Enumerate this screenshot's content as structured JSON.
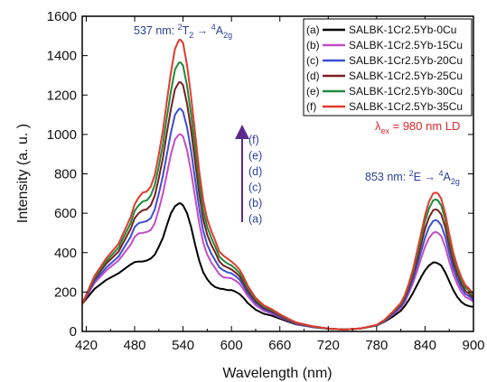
{
  "chart_data": {
    "type": "line",
    "xlabel": "Wavelength (nm)",
    "ylabel": "Intensity (a. u. )",
    "xlim": [
      415,
      900
    ],
    "ylim": [
      0,
      1600
    ],
    "xticks": [
      420,
      480,
      540,
      600,
      660,
      720,
      780,
      840,
      900
    ],
    "yticks": [
      0,
      200,
      400,
      600,
      800,
      1000,
      1200,
      1400,
      1600
    ],
    "grid": false,
    "legend_position": "top-right",
    "x": [
      415,
      430,
      445,
      460,
      475,
      480,
      485,
      490,
      495,
      500,
      505,
      510,
      515,
      520,
      525,
      530,
      535,
      537,
      540,
      545,
      550,
      555,
      560,
      565,
      570,
      575,
      580,
      585,
      590,
      595,
      600,
      605,
      610,
      615,
      620,
      630,
      640,
      650,
      660,
      670,
      680,
      700,
      720,
      740,
      760,
      780,
      790,
      800,
      810,
      815,
      820,
      825,
      830,
      835,
      840,
      845,
      850,
      853,
      856,
      860,
      865,
      870,
      875,
      880,
      885,
      890,
      895,
      900
    ],
    "series": [
      {
        "name": "SALBK-1Cr2.5Yb-0Cu",
        "marker": "(a)",
        "color": "#000000",
        "peak": 650,
        "shoulder": 210,
        "peak2": 350,
        "values": [
          140,
          215,
          262,
          295,
          340,
          352,
          355,
          355,
          360,
          370,
          390,
          430,
          475,
          540,
          600,
          635,
          650,
          650,
          640,
          600,
          530,
          440,
          360,
          300,
          265,
          240,
          225,
          218,
          215,
          210,
          210,
          202,
          190,
          170,
          145,
          110,
          90,
          80,
          65,
          50,
          36,
          22,
          14,
          10,
          15,
          30,
          50,
          75,
          105,
          130,
          160,
          195,
          235,
          275,
          310,
          335,
          350,
          350,
          345,
          335,
          300,
          255,
          210,
          175,
          150,
          135,
          128,
          125
        ]
      },
      {
        "name": "SALBK-1Cr2.5Yb-15Cu",
        "marker": "(b)",
        "color": "#c24dc6",
        "peak": 1000,
        "shoulder": 270,
        "peak2": 505,
        "values": [
          140,
          245,
          310,
          360,
          440,
          480,
          498,
          500,
          505,
          515,
          550,
          620,
          700,
          800,
          900,
          975,
          1000,
          1000,
          990,
          920,
          810,
          680,
          550,
          450,
          390,
          350,
          320,
          290,
          275,
          272,
          270,
          258,
          242,
          214,
          180,
          133,
          105,
          90,
          72,
          55,
          38,
          23,
          14,
          10,
          15,
          31,
          53,
          85,
          120,
          150,
          195,
          245,
          305,
          370,
          430,
          475,
          500,
          505,
          500,
          485,
          430,
          355,
          290,
          240,
          200,
          175,
          165,
          150
        ]
      },
      {
        "name": "SALBK-1Cr2.5Yb-20Cu",
        "marker": "(c)",
        "color": "#3a4fd0",
        "peak": 1130,
        "shoulder": 295,
        "peak2": 565,
        "values": [
          140,
          255,
          325,
          380,
          480,
          530,
          550,
          555,
          560,
          575,
          620,
          700,
          790,
          900,
          1010,
          1100,
          1130,
          1130,
          1115,
          1035,
          915,
          770,
          625,
          510,
          440,
          395,
          360,
          325,
          310,
          300,
          295,
          281,
          263,
          232,
          195,
          145,
          113,
          97,
          76,
          58,
          40,
          24,
          14,
          10,
          15,
          31,
          55,
          90,
          128,
          160,
          210,
          265,
          335,
          405,
          475,
          530,
          560,
          565,
          560,
          540,
          480,
          395,
          320,
          265,
          220,
          190,
          178,
          160
        ]
      },
      {
        "name": "SALBK-1Cr2.5Yb-25Cu",
        "marker": "(d)",
        "color": "#7a1f1f",
        "peak": 1265,
        "shoulder": 315,
        "peak2": 620,
        "values": [
          140,
          265,
          345,
          405,
          520,
          575,
          600,
          615,
          620,
          640,
          690,
          780,
          880,
          1010,
          1130,
          1230,
          1265,
          1265,
          1250,
          1155,
          1020,
          860,
          700,
          570,
          490,
          440,
          400,
          355,
          335,
          325,
          315,
          299,
          280,
          248,
          208,
          153,
          120,
          103,
          80,
          60,
          42,
          25,
          14,
          10,
          15,
          32,
          57,
          95,
          135,
          170,
          225,
          285,
          360,
          440,
          520,
          580,
          615,
          620,
          615,
          595,
          530,
          435,
          350,
          290,
          240,
          205,
          190,
          170
        ]
      },
      {
        "name": "SALBK-1Cr2.5Yb-30Cu",
        "marker": "(e)",
        "color": "#1e8a3c",
        "peak": 1365,
        "shoulder": 335,
        "peak2": 670,
        "values": [
          140,
          272,
          358,
          425,
          550,
          612,
          640,
          660,
          665,
          690,
          745,
          840,
          950,
          1090,
          1220,
          1330,
          1365,
          1365,
          1350,
          1245,
          1100,
          930,
          755,
          615,
          530,
          475,
          430,
          380,
          360,
          345,
          335,
          318,
          296,
          262,
          220,
          162,
          127,
          108,
          84,
          63,
          44,
          26,
          14,
          10,
          15,
          32,
          58,
          98,
          140,
          178,
          235,
          300,
          385,
          470,
          560,
          625,
          665,
          670,
          665,
          640,
          570,
          470,
          380,
          315,
          260,
          222,
          205,
          180
        ]
      },
      {
        "name": "SALBK-1Cr2.5Yb-35Cu",
        "marker": "(f)",
        "color": "#e23a2e",
        "peak": 1480,
        "shoulder": 355,
        "peak2": 705,
        "values": [
          140,
          280,
          372,
          445,
          580,
          645,
          680,
          705,
          710,
          735,
          795,
          900,
          1020,
          1170,
          1315,
          1435,
          1480,
          1480,
          1465,
          1350,
          1190,
          1005,
          815,
          665,
          570,
          510,
          460,
          405,
          385,
          370,
          355,
          337,
          314,
          278,
          233,
          170,
          133,
          113,
          87,
          66,
          46,
          27,
          15,
          10,
          15,
          33,
          60,
          100,
          145,
          185,
          245,
          315,
          405,
          495,
          590,
          660,
          700,
          705,
          700,
          675,
          600,
          495,
          400,
          330,
          275,
          235,
          215,
          190
        ]
      }
    ],
    "annotations": {
      "peak1": "537 nm: ²T₂ → ⁴A₂g",
      "peak2": "853 nm: ²E → ⁴A₂g",
      "excitation": "λex = 980 nm LD",
      "arrow_labels": [
        "(f)",
        "(e)",
        "(d)",
        "(c)",
        "(b)",
        "(a)"
      ]
    }
  }
}
